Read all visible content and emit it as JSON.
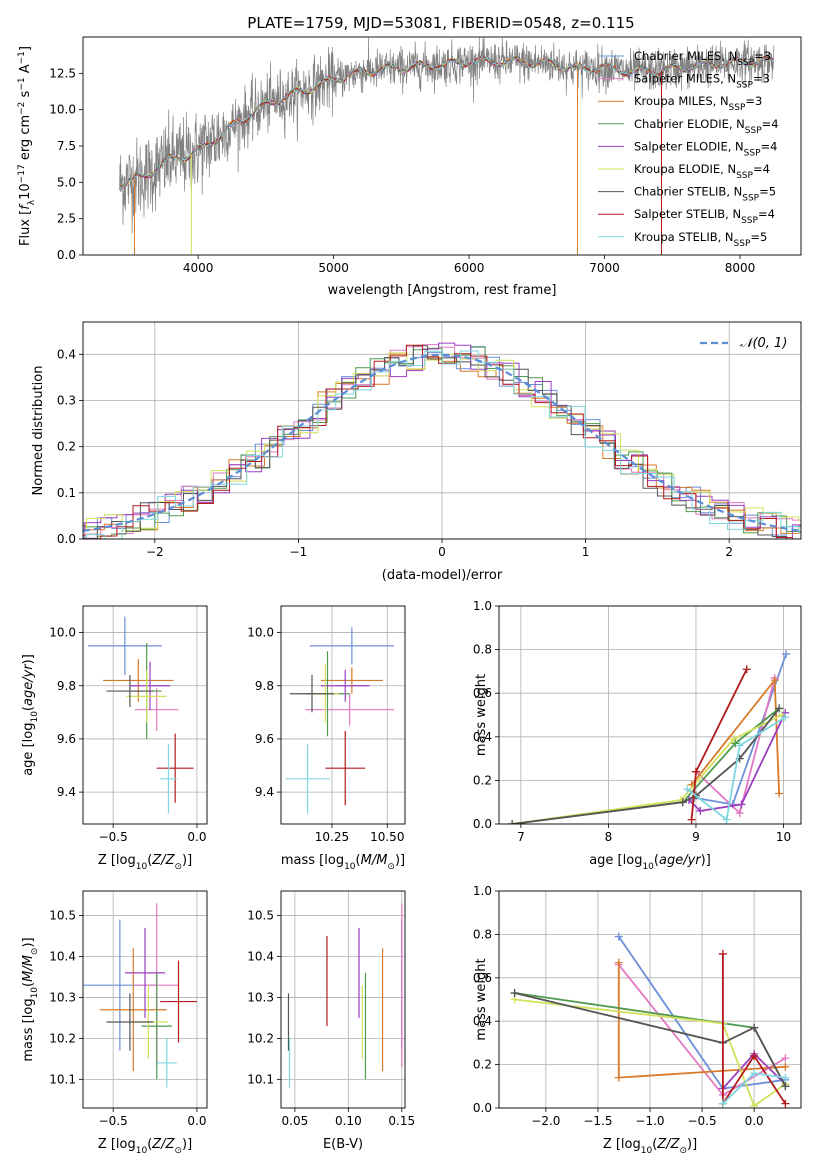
{
  "figure": {
    "title": "PLATE=1759, MJD=53081, FIBERID=0548, z=0.115"
  },
  "models": [
    {
      "name": "Chabrier MILES",
      "nssp": "3",
      "color": "#6b8fd9"
    },
    {
      "name": "Salpeter MILES",
      "nssp": "3",
      "color": "#e377c2"
    },
    {
      "name": "Kroupa MILES",
      "nssp": "3",
      "color": "#d97a2a"
    },
    {
      "name": "Chabrier ELODIE",
      "nssp": "4",
      "color": "#4f9a4f"
    },
    {
      "name": "Salpeter ELODIE",
      "nssp": "4",
      "color": "#9b3fbf"
    },
    {
      "name": "Kroupa ELODIE",
      "nssp": "4",
      "color": "#d2e05a"
    },
    {
      "name": "Chabrier STELIB",
      "nssp": "5",
      "color": "#555555"
    },
    {
      "name": "Salpeter STELIB",
      "nssp": "4",
      "color": "#b31b1b"
    },
    {
      "name": "Kroupa STELIB",
      "nssp": "5",
      "color": "#7fd6e0"
    }
  ],
  "chart_data": [
    {
      "id": "spectrum",
      "type": "line",
      "title": "PLATE=1759, MJD=53081, FIBERID=0548, z=0.115",
      "xlabel": "wavelength [Angstrom, rest frame]",
      "ylabel": "Flux [f_λ 10^-17 erg cm^-2 s^-1 A^-1]",
      "xlim": [
        3150,
        8450
      ],
      "ylim": [
        0,
        15
      ],
      "xticks": [
        "4000",
        "5000",
        "6000",
        "7000",
        "8000"
      ],
      "yticks": [
        "0.0",
        "2.5",
        "5.0",
        "7.5",
        "10.0",
        "12.5"
      ],
      "observed_color": "#808080",
      "continuum_x": [
        3420,
        3600,
        3800,
        3950,
        4100,
        4300,
        4500,
        4800,
        5000,
        5200,
        5500,
        5800,
        6000,
        6300,
        6600,
        6800,
        7000,
        7200,
        7400,
        7600,
        7800,
        8000,
        8250
      ],
      "continuum_y": [
        4.9,
        5.4,
        6.6,
        6.9,
        7.8,
        9.2,
        10.4,
        11.4,
        12.1,
        12.6,
        12.9,
        13.1,
        13.3,
        13.3,
        13.2,
        12.8,
        12.9,
        12.6,
        12.7,
        12.9,
        13.1,
        13.3,
        13.3
      ]
    },
    {
      "id": "residual-histogram",
      "type": "bar",
      "xlabel": "(data-model)/error",
      "ylabel": "Normed distribution",
      "xlim": [
        -2.5,
        2.5
      ],
      "ylim": [
        0,
        0.47
      ],
      "xticks": [
        "−2",
        "−1",
        "0",
        "1",
        "2"
      ],
      "yticks": [
        "0.0",
        "0.1",
        "0.2",
        "0.3",
        "0.4"
      ],
      "legend": "𝒩(0, 1)",
      "normal_color": "#5b8ed6",
      "grid": true
    },
    {
      "id": "age-vs-Z",
      "type": "scatter",
      "xlabel": "Z [log10(Z/Z⊙)]",
      "ylabel": "age [log10(age/yr)]",
      "xlim": [
        -0.68,
        0.06
      ],
      "ylim": [
        9.28,
        10.1
      ],
      "xticks": [
        "−0.5",
        "0.0"
      ],
      "yticks": [
        "9.4",
        "9.6",
        "9.8",
        "10.0"
      ],
      "points": [
        {
          "x": -0.43,
          "xerr": 0.22,
          "y": 9.95,
          "yerr": 0.11
        },
        {
          "x": -0.24,
          "xerr": 0.13,
          "y": 9.71,
          "yerr": 0.08
        },
        {
          "x": -0.35,
          "xerr": 0.21,
          "y": 9.82,
          "yerr": 0.08
        },
        {
          "x": -0.3,
          "xerr": 0.09,
          "y": 9.78,
          "yerr": 0.18
        },
        {
          "x": -0.28,
          "xerr": 0.12,
          "y": 9.8,
          "yerr": 0.09
        },
        {
          "x": -0.3,
          "xerr": 0.12,
          "y": 9.76,
          "yerr": 0.1
        },
        {
          "x": -0.4,
          "xerr": 0.14,
          "y": 9.78,
          "yerr": 0.06
        },
        {
          "x": -0.13,
          "xerr": 0.11,
          "y": 9.49,
          "yerr": 0.13
        },
        {
          "x": -0.17,
          "xerr": 0.05,
          "y": 9.45,
          "yerr": 0.13
        }
      ]
    },
    {
      "id": "age-vs-mass",
      "type": "scatter",
      "xlabel": "mass [log10(M/M⊙)]",
      "ylabel": "",
      "xlim": [
        10.02,
        10.58
      ],
      "ylim": [
        9.28,
        10.1
      ],
      "xticks": [
        "10.25",
        "10.50"
      ],
      "yticks": [
        "9.4",
        "9.6",
        "9.8",
        "10.0"
      ],
      "points": [
        {
          "x": 10.34,
          "xerr": 0.19,
          "y": 9.95,
          "yerr": 0.07
        },
        {
          "x": 10.33,
          "xerr": 0.2,
          "y": 9.71,
          "yerr": 0.06
        },
        {
          "x": 10.34,
          "xerr": 0.14,
          "y": 9.82,
          "yerr": 0.05
        },
        {
          "x": 10.23,
          "xerr": 0.1,
          "y": 9.77,
          "yerr": 0.16
        },
        {
          "x": 10.31,
          "xerr": 0.11,
          "y": 9.8,
          "yerr": 0.06
        },
        {
          "x": 10.22,
          "xerr": 0.06,
          "y": 9.77,
          "yerr": 0.11
        },
        {
          "x": 10.16,
          "xerr": 0.1,
          "y": 9.77,
          "yerr": 0.07
        },
        {
          "x": 10.31,
          "xerr": 0.09,
          "y": 9.49,
          "yerr": 0.14
        },
        {
          "x": 10.14,
          "xerr": 0.1,
          "y": 9.45,
          "yerr": 0.13
        }
      ]
    },
    {
      "id": "mass-weight-vs-age",
      "type": "line",
      "xlabel": "age [log10(age/yr)]",
      "ylabel": "mass weight",
      "xlim": [
        6.75,
        10.2
      ],
      "ylim": [
        0,
        1
      ],
      "xticks": [
        "7",
        "8",
        "9",
        "10"
      ],
      "yticks": [
        "0.0",
        "0.2",
        "0.4",
        "0.6",
        "0.8",
        "1.0"
      ],
      "grid": true,
      "series": [
        {
          "x": [
            8.98,
            9.42,
            10.03
          ],
          "y": [
            0.12,
            0.09,
            0.78
          ]
        },
        {
          "x": [
            9.0,
            9.5,
            9.9
          ],
          "y": [
            0.24,
            0.05,
            0.67
          ]
        },
        {
          "x": [
            8.95,
            9.9,
            9.95
          ],
          "y": [
            0.18,
            0.66,
            0.14
          ]
        },
        {
          "x": [
            6.9,
            8.85,
            9.45,
            9.95
          ],
          "y": [
            0.0,
            0.1,
            0.37,
            0.53
          ]
        },
        {
          "x": [
            8.92,
            9.05,
            9.52,
            10.02
          ],
          "y": [
            0.11,
            0.06,
            0.09,
            0.51
          ]
        },
        {
          "x": [
            6.9,
            8.83,
            9.43,
            9.98
          ],
          "y": [
            0.0,
            0.11,
            0.39,
            0.5
          ]
        },
        {
          "x": [
            6.9,
            8.85,
            9.0,
            9.5,
            9.95
          ],
          "y": [
            0.0,
            0.1,
            0.13,
            0.3,
            0.53
          ]
        },
        {
          "x": [
            8.95,
            9.0,
            9.58
          ],
          "y": [
            0.02,
            0.24,
            0.71
          ]
        },
        {
          "x": [
            8.9,
            9.35,
            9.5,
            10.02
          ],
          "y": [
            0.16,
            0.02,
            0.36,
            0.49
          ]
        }
      ]
    },
    {
      "id": "mass-vs-Z",
      "type": "scatter",
      "xlabel": "Z [log10(Z/Z⊙)]",
      "ylabel": "mass [log10(M/M⊙)]",
      "xlim": [
        -0.68,
        0.06
      ],
      "ylim": [
        10.03,
        10.56
      ],
      "xticks": [
        "−0.5",
        "0.0"
      ],
      "yticks": [
        "10.1",
        "10.2",
        "10.3",
        "10.4",
        "10.5"
      ],
      "points": [
        {
          "x": -0.46,
          "xerr": 0.22,
          "y": 10.33,
          "yerr": 0.16
        },
        {
          "x": -0.24,
          "xerr": 0.13,
          "y": 10.33,
          "yerr": 0.2
        },
        {
          "x": -0.38,
          "xerr": 0.2,
          "y": 10.27,
          "yerr": 0.15
        },
        {
          "x": -0.24,
          "xerr": 0.09,
          "y": 10.23,
          "yerr": 0.13
        },
        {
          "x": -0.31,
          "xerr": 0.12,
          "y": 10.36,
          "yerr": 0.11
        },
        {
          "x": -0.29,
          "xerr": 0.12,
          "y": 10.24,
          "yerr": 0.09
        },
        {
          "x": -0.4,
          "xerr": 0.14,
          "y": 10.24,
          "yerr": 0.07
        },
        {
          "x": -0.11,
          "xerr": 0.11,
          "y": 10.29,
          "yerr": 0.1
        },
        {
          "x": -0.18,
          "xerr": 0.06,
          "y": 10.14,
          "yerr": 0.06
        }
      ]
    },
    {
      "id": "mass-vs-EBV",
      "type": "scatter",
      "xlabel": "E(B-V)",
      "ylabel": "",
      "xlim": [
        0.037,
        0.153
      ],
      "ylim": [
        10.03,
        10.56
      ],
      "xticks": [
        "0.05",
        "0.10",
        "0.15"
      ],
      "yticks": [
        "10.1",
        "10.2",
        "10.3",
        "10.4",
        "10.5"
      ],
      "points": [
        {
          "x": 0.15,
          "y": 10.33,
          "yerr": 0.16
        },
        {
          "x": 0.15,
          "y": 10.33,
          "yerr": 0.2
        },
        {
          "x": 0.132,
          "y": 10.27,
          "yerr": 0.15
        },
        {
          "x": 0.116,
          "y": 10.23,
          "yerr": 0.13
        },
        {
          "x": 0.11,
          "y": 10.36,
          "yerr": 0.11
        },
        {
          "x": 0.113,
          "y": 10.24,
          "yerr": 0.09
        },
        {
          "x": 0.044,
          "y": 10.24,
          "yerr": 0.07
        },
        {
          "x": 0.08,
          "y": 10.34,
          "yerr": 0.11
        },
        {
          "x": 0.045,
          "y": 10.14,
          "yerr": 0.06
        }
      ]
    },
    {
      "id": "mass-weight-vs-Z",
      "type": "line",
      "xlabel": "Z [log10(Z/Z⊙)]",
      "ylabel": "mass weight",
      "xlim": [
        -2.45,
        0.45
      ],
      "ylim": [
        0,
        1
      ],
      "xticks": [
        "−2.0",
        "−1.5",
        "−1.0",
        "−0.5",
        "0.0"
      ],
      "yticks": [
        "0.0",
        "0.2",
        "0.4",
        "0.6",
        "0.8",
        "1.0"
      ],
      "grid": true,
      "series": [
        {
          "x": [
            -1.3,
            -0.3,
            0.3
          ],
          "y": [
            0.79,
            0.09,
            0.13
          ]
        },
        {
          "x": [
            -1.3,
            -0.3,
            0.3
          ],
          "y": [
            0.66,
            0.06,
            0.23
          ]
        },
        {
          "x": [
            -1.3,
            -1.3,
            0.3
          ],
          "y": [
            0.67,
            0.14,
            0.19
          ]
        },
        {
          "x": [
            -2.3,
            0.0,
            0.3
          ],
          "y": [
            0.53,
            0.37,
            0.1
          ]
        },
        {
          "x": [
            -0.3,
            0.0,
            0.3
          ],
          "y": [
            0.09,
            0.25,
            0.11
          ]
        },
        {
          "x": [
            -2.3,
            -0.3,
            0.0,
            0.3
          ],
          "y": [
            0.5,
            0.39,
            0.01,
            0.11
          ]
        },
        {
          "x": [
            -2.3,
            -0.3,
            0.0,
            0.3
          ],
          "y": [
            0.53,
            0.3,
            0.37,
            0.1
          ]
        },
        {
          "x": [
            -0.3,
            -0.3,
            0.0,
            0.3
          ],
          "y": [
            0.71,
            0.02,
            0.24,
            0.02
          ]
        },
        {
          "x": [
            -0.3,
            0.0,
            0.3
          ],
          "y": [
            0.02,
            0.16,
            0.14
          ]
        }
      ]
    }
  ]
}
